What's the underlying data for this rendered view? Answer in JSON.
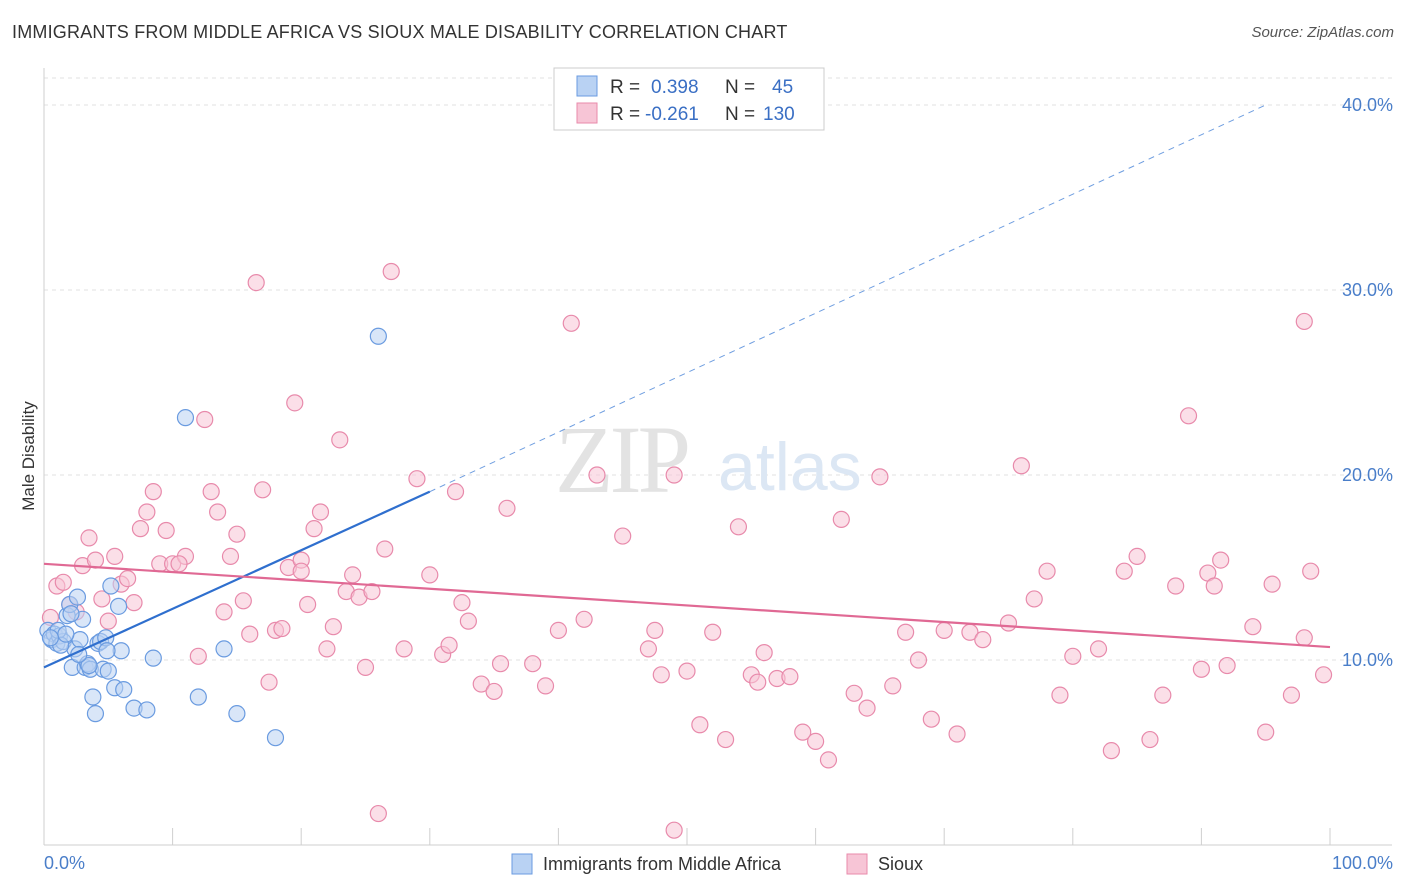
{
  "title": "IMMIGRANTS FROM MIDDLE AFRICA VS SIOUX MALE DISABILITY CORRELATION CHART",
  "source": "Source: ZipAtlas.com",
  "watermark": {
    "zip": "ZIP",
    "atlas": "atlas"
  },
  "legend": {
    "rows": [
      {
        "r_label": "R =",
        "r_value": "0.398",
        "n_label": "N =",
        "n_value": "45"
      },
      {
        "r_label": "R =",
        "r_value": "-0.261",
        "n_label": "N =",
        "n_value": "130"
      }
    ]
  },
  "chart_data": {
    "type": "scatter",
    "ylabel": "Male Disability",
    "xlim": [
      0,
      100
    ],
    "ylim": [
      0,
      42
    ],
    "x_tick_labels": [
      "0.0%",
      "100.0%"
    ],
    "y_ticks": [
      10,
      20,
      30,
      40
    ],
    "y_tick_labels": [
      "10.0%",
      "20.0%",
      "30.0%",
      "40.0%"
    ],
    "series": [
      {
        "name": "Immigrants from Middle Africa",
        "color": "#6a9be0",
        "fill": "#b9d2f3",
        "trend": {
          "x0": 0,
          "y0": 9.6,
          "x1": 30,
          "y1": 19.1,
          "dash_to_x": 95,
          "dash_to_y": 40.0
        },
        "points": [
          [
            0.3,
            11.6
          ],
          [
            0.6,
            11.1
          ],
          [
            0.8,
            11.4
          ],
          [
            1.0,
            10.9
          ],
          [
            1.2,
            11.3
          ],
          [
            1.5,
            11.0
          ],
          [
            1.8,
            12.4
          ],
          [
            2.0,
            13.0
          ],
          [
            2.2,
            9.6
          ],
          [
            2.4,
            10.6
          ],
          [
            2.6,
            13.4
          ],
          [
            2.8,
            11.1
          ],
          [
            3.0,
            12.2
          ],
          [
            3.2,
            9.6
          ],
          [
            3.4,
            9.8
          ],
          [
            3.6,
            9.5
          ],
          [
            3.8,
            8.0
          ],
          [
            4.0,
            7.1
          ],
          [
            4.2,
            10.9
          ],
          [
            4.4,
            11.0
          ],
          [
            4.6,
            9.5
          ],
          [
            4.8,
            11.2
          ],
          [
            5.0,
            9.4
          ],
          [
            5.2,
            14.0
          ],
          [
            5.5,
            8.5
          ],
          [
            5.8,
            12.9
          ],
          [
            6.0,
            10.5
          ],
          [
            6.2,
            8.4
          ],
          [
            7.0,
            7.4
          ],
          [
            8.0,
            7.3
          ],
          [
            8.5,
            10.1
          ],
          [
            11.0,
            23.1
          ],
          [
            12.0,
            8.0
          ],
          [
            14.0,
            10.6
          ],
          [
            15.0,
            7.1
          ],
          [
            18.0,
            5.8
          ],
          [
            26.0,
            27.5
          ],
          [
            1.1,
            11.6
          ],
          [
            1.3,
            10.8
          ],
          [
            2.1,
            12.5
          ],
          [
            3.5,
            9.7
          ],
          [
            2.7,
            10.3
          ],
          [
            1.7,
            11.4
          ],
          [
            4.9,
            10.5
          ],
          [
            0.5,
            11.2
          ]
        ]
      },
      {
        "name": "Sioux",
        "color": "#e88aab",
        "fill": "#f7c5d6",
        "trend": {
          "x0": 0,
          "y0": 15.2,
          "x1": 100,
          "y1": 10.7
        },
        "points": [
          [
            0.5,
            12.3
          ],
          [
            1.0,
            14.0
          ],
          [
            1.5,
            14.2
          ],
          [
            2.0,
            13.0
          ],
          [
            2.5,
            12.6
          ],
          [
            3.0,
            15.1
          ],
          [
            3.5,
            16.6
          ],
          [
            4.0,
            15.4
          ],
          [
            4.5,
            13.3
          ],
          [
            5.0,
            12.1
          ],
          [
            5.5,
            15.6
          ],
          [
            6.0,
            14.1
          ],
          [
            6.5,
            14.4
          ],
          [
            7.0,
            13.1
          ],
          [
            7.5,
            17.1
          ],
          [
            8.0,
            18.0
          ],
          [
            8.5,
            19.1
          ],
          [
            9.0,
            15.2
          ],
          [
            9.5,
            17.0
          ],
          [
            10.0,
            15.2
          ],
          [
            11.0,
            15.6
          ],
          [
            12.0,
            10.2
          ],
          [
            12.5,
            23.0
          ],
          [
            13.0,
            19.1
          ],
          [
            13.5,
            18.0
          ],
          [
            14.0,
            12.6
          ],
          [
            14.5,
            15.6
          ],
          [
            15.0,
            16.8
          ],
          [
            15.5,
            13.2
          ],
          [
            16.0,
            11.4
          ],
          [
            16.5,
            30.4
          ],
          [
            17.0,
            19.2
          ],
          [
            17.5,
            8.8
          ],
          [
            18.0,
            11.6
          ],
          [
            18.5,
            11.7
          ],
          [
            19.0,
            15.0
          ],
          [
            19.5,
            23.9
          ],
          [
            20.0,
            15.4
          ],
          [
            20.5,
            13.0
          ],
          [
            21.0,
            17.1
          ],
          [
            21.5,
            18.0
          ],
          [
            22.0,
            10.6
          ],
          [
            22.5,
            11.8
          ],
          [
            23.0,
            21.9
          ],
          [
            23.5,
            13.7
          ],
          [
            24.0,
            14.6
          ],
          [
            24.5,
            13.4
          ],
          [
            25.0,
            9.6
          ],
          [
            25.5,
            13.7
          ],
          [
            26.0,
            1.7
          ],
          [
            26.5,
            16.0
          ],
          [
            27.0,
            31.0
          ],
          [
            28.0,
            10.6
          ],
          [
            29.0,
            19.8
          ],
          [
            30.0,
            14.6
          ],
          [
            31.0,
            10.3
          ],
          [
            31.5,
            10.8
          ],
          [
            32.0,
            19.1
          ],
          [
            32.5,
            13.1
          ],
          [
            33.0,
            12.1
          ],
          [
            34.0,
            8.7
          ],
          [
            35.0,
            8.3
          ],
          [
            35.5,
            9.8
          ],
          [
            36.0,
            18.2
          ],
          [
            38.0,
            9.8
          ],
          [
            39.0,
            8.6
          ],
          [
            40.0,
            11.6
          ],
          [
            41.0,
            28.2
          ],
          [
            42.0,
            12.2
          ],
          [
            43.0,
            20.0
          ],
          [
            45.0,
            16.7
          ],
          [
            47.0,
            10.6
          ],
          [
            47.5,
            11.6
          ],
          [
            48.0,
            9.2
          ],
          [
            49.0,
            20.0
          ],
          [
            50.0,
            9.4
          ],
          [
            51.0,
            6.5
          ],
          [
            52.0,
            11.5
          ],
          [
            53.0,
            5.7
          ],
          [
            54.0,
            17.2
          ],
          [
            55.0,
            9.2
          ],
          [
            55.5,
            8.8
          ],
          [
            56.0,
            10.4
          ],
          [
            57.0,
            9.0
          ],
          [
            58.0,
            9.1
          ],
          [
            59.0,
            6.1
          ],
          [
            60.0,
            5.6
          ],
          [
            61.0,
            4.6
          ],
          [
            62.0,
            17.6
          ],
          [
            63.0,
            8.2
          ],
          [
            64.0,
            7.4
          ],
          [
            65.0,
            19.9
          ],
          [
            66.0,
            8.6
          ],
          [
            67.0,
            11.5
          ],
          [
            68.0,
            10.0
          ],
          [
            69.0,
            6.8
          ],
          [
            70.0,
            11.6
          ],
          [
            71.0,
            6.0
          ],
          [
            72.0,
            11.5
          ],
          [
            73.0,
            11.1
          ],
          [
            75.0,
            12.0
          ],
          [
            76.0,
            20.5
          ],
          [
            77.0,
            13.3
          ],
          [
            78.0,
            14.8
          ],
          [
            79.0,
            8.1
          ],
          [
            80.0,
            10.2
          ],
          [
            82.0,
            10.6
          ],
          [
            83.0,
            5.1
          ],
          [
            84.0,
            14.8
          ],
          [
            85.0,
            15.6
          ],
          [
            86.0,
            5.7
          ],
          [
            87.0,
            8.1
          ],
          [
            88.0,
            14.0
          ],
          [
            89.0,
            23.2
          ],
          [
            90.0,
            9.5
          ],
          [
            90.5,
            14.7
          ],
          [
            91.0,
            14.0
          ],
          [
            91.5,
            15.4
          ],
          [
            92.0,
            9.7
          ],
          [
            94.0,
            11.8
          ],
          [
            95.0,
            6.1
          ],
          [
            95.5,
            14.1
          ],
          [
            97.0,
            8.1
          ],
          [
            98.0,
            11.2
          ],
          [
            98.5,
            14.8
          ],
          [
            99.5,
            9.2
          ],
          [
            98.0,
            28.3
          ],
          [
            49.0,
            0.8
          ],
          [
            20.0,
            14.8
          ],
          [
            10.5,
            15.2
          ]
        ]
      }
    ]
  }
}
